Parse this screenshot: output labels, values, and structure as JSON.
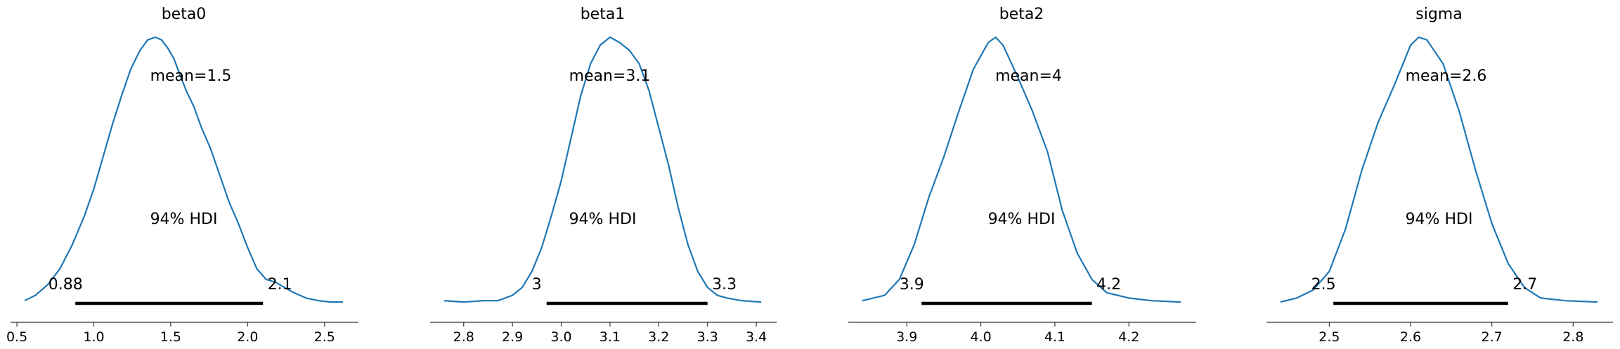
{
  "chart_data": [
    {
      "type": "line",
      "title": "beta0",
      "mean_label": "mean=1.5",
      "hdi_label": "94% HDI",
      "hdi": [
        0.88,
        2.1
      ],
      "hdi_low_label": "0.88",
      "hdi_high_label": "2.1",
      "xlim": [
        0.55,
        2.62
      ],
      "xticks": [
        0.5,
        1.0,
        1.5,
        2.0,
        2.5
      ],
      "xtick_labels": [
        "0.5",
        "1.0",
        "1.5",
        "2.0",
        "2.5"
      ],
      "curve": {
        "x": [
          0.55,
          0.62,
          0.7,
          0.78,
          0.86,
          0.94,
          1.0,
          1.06,
          1.12,
          1.18,
          1.24,
          1.3,
          1.35,
          1.4,
          1.44,
          1.48,
          1.52,
          1.56,
          1.6,
          1.65,
          1.7,
          1.76,
          1.82,
          1.88,
          1.94,
          2.0,
          2.06,
          2.12,
          2.18,
          2.24,
          2.3,
          2.38,
          2.46,
          2.54,
          2.62
        ],
        "y": [
          0.01,
          0.03,
          0.07,
          0.13,
          0.22,
          0.33,
          0.43,
          0.55,
          0.67,
          0.78,
          0.88,
          0.95,
          0.99,
          1.0,
          0.99,
          0.96,
          0.92,
          0.86,
          0.8,
          0.74,
          0.66,
          0.58,
          0.48,
          0.38,
          0.3,
          0.21,
          0.13,
          0.09,
          0.08,
          0.06,
          0.04,
          0.02,
          0.01,
          0.005,
          0.005
        ]
      }
    },
    {
      "type": "line",
      "title": "beta1",
      "mean_label": "mean=3.1",
      "hdi_label": "94% HDI",
      "hdi": [
        2.97,
        3.3
      ],
      "hdi_low_label": "3",
      "hdi_high_label": "3.3",
      "xlim": [
        2.76,
        3.41
      ],
      "xticks": [
        2.8,
        2.9,
        3.0,
        3.1,
        3.2,
        3.3,
        3.4
      ],
      "xtick_labels": [
        "2.8",
        "2.9",
        "3.0",
        "3.1",
        "3.2",
        "3.3",
        "3.4"
      ],
      "curve": {
        "x": [
          2.76,
          2.8,
          2.84,
          2.87,
          2.9,
          2.92,
          2.94,
          2.96,
          2.98,
          3.0,
          3.02,
          3.04,
          3.06,
          3.08,
          3.1,
          3.12,
          3.14,
          3.16,
          3.18,
          3.2,
          3.22,
          3.24,
          3.26,
          3.28,
          3.3,
          3.32,
          3.34,
          3.37,
          3.41
        ],
        "y": [
          0.01,
          0.005,
          0.01,
          0.01,
          0.03,
          0.06,
          0.12,
          0.21,
          0.33,
          0.46,
          0.62,
          0.78,
          0.9,
          0.97,
          1.0,
          0.98,
          0.95,
          0.9,
          0.8,
          0.66,
          0.52,
          0.36,
          0.22,
          0.12,
          0.06,
          0.03,
          0.02,
          0.01,
          0.005
        ]
      }
    },
    {
      "type": "line",
      "title": "beta2",
      "mean_label": "mean=4",
      "hdi_label": "94% HDI",
      "hdi": [
        3.92,
        4.15
      ],
      "hdi_low_label": "3.9",
      "hdi_high_label": "4.2",
      "xlim": [
        3.84,
        4.27
      ],
      "xticks": [
        3.9,
        4.0,
        4.1,
        4.2
      ],
      "xtick_labels": [
        "3.9",
        "4.0",
        "4.1",
        "4.2"
      ],
      "curve": {
        "x": [
          3.84,
          3.87,
          3.89,
          3.91,
          3.93,
          3.95,
          3.97,
          3.99,
          4.01,
          4.02,
          4.03,
          4.05,
          4.07,
          4.09,
          4.11,
          4.13,
          4.15,
          4.17,
          4.2,
          4.23,
          4.27
        ],
        "y": [
          0.01,
          0.03,
          0.09,
          0.22,
          0.4,
          0.55,
          0.72,
          0.88,
          0.98,
          1.0,
          0.97,
          0.85,
          0.72,
          0.57,
          0.35,
          0.19,
          0.09,
          0.04,
          0.02,
          0.01,
          0.005
        ]
      }
    },
    {
      "type": "line",
      "title": "sigma",
      "mean_label": "mean=2.6",
      "hdi_label": "94% HDI",
      "hdi": [
        2.505,
        2.72
      ],
      "hdi_low_label": "2.5",
      "hdi_high_label": "2.7",
      "xlim": [
        2.44,
        2.83
      ],
      "xticks": [
        2.5,
        2.6,
        2.7,
        2.8
      ],
      "xtick_labels": [
        "2.5",
        "2.6",
        "2.7",
        "2.8"
      ],
      "curve": {
        "x": [
          2.44,
          2.46,
          2.48,
          2.5,
          2.52,
          2.54,
          2.56,
          2.58,
          2.6,
          2.61,
          2.62,
          2.64,
          2.66,
          2.68,
          2.7,
          2.72,
          2.74,
          2.76,
          2.79,
          2.83
        ],
        "y": [
          0.005,
          0.02,
          0.05,
          0.12,
          0.28,
          0.5,
          0.68,
          0.82,
          0.97,
          1.0,
          0.99,
          0.9,
          0.72,
          0.5,
          0.3,
          0.15,
          0.06,
          0.02,
          0.01,
          0.005
        ]
      }
    }
  ],
  "colors": {
    "curve": "#1f77b4",
    "hdi_bar": "#000000",
    "axis": "#333333"
  }
}
